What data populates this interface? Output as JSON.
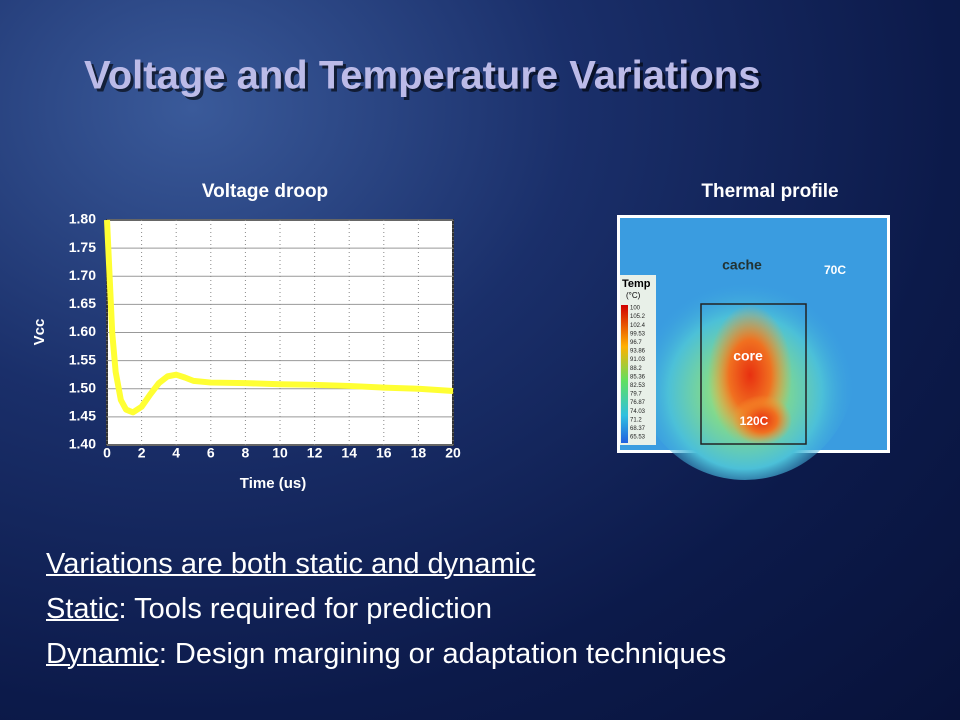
{
  "title": "Voltage and Temperature Variations",
  "chart_data": {
    "type": "line",
    "title": "Voltage droop",
    "x_label": "Time (us)",
    "y_label": "Vcc",
    "x": [
      0,
      0.15,
      0.3,
      0.5,
      0.8,
      1.1,
      1.5,
      2,
      2.5,
      3,
      3.5,
      4,
      4.5,
      5,
      6,
      8,
      10,
      12,
      14,
      16,
      18,
      20
    ],
    "values": [
      1.8,
      1.7,
      1.6,
      1.53,
      1.48,
      1.463,
      1.458,
      1.468,
      1.49,
      1.51,
      1.522,
      1.525,
      1.52,
      1.514,
      1.511,
      1.51,
      1.508,
      1.507,
      1.505,
      1.502,
      1.5,
      1.496
    ],
    "color": "#ffff33",
    "xlim": [
      0,
      20
    ],
    "xticks": [
      0,
      2,
      4,
      6,
      8,
      10,
      12,
      14,
      16,
      18,
      20
    ],
    "ylim": [
      1.4,
      1.8
    ],
    "yticks": [
      {
        "value": 1.4,
        "label": "1.40"
      },
      1.45,
      {
        "value": 1.5,
        "label": "1.50"
      },
      1.55,
      {
        "value": 1.6,
        "label": "1.60"
      },
      1.65,
      {
        "value": 1.7,
        "label": "1.70"
      },
      1.75,
      {
        "value": 1.8,
        "label": "1.80"
      }
    ],
    "grid": true
  },
  "thermal": {
    "title": "Thermal profile",
    "cache": "cache",
    "core": "core",
    "hot": "120C",
    "cool": "70C",
    "scale_title": "Temp",
    "scale_unit": "(°C)",
    "scale_labels": [
      "100",
      "105.2",
      "102.4",
      "99.53",
      "96.7",
      "93.86",
      "91.03",
      "88.2",
      "85.36",
      "82.53",
      "79.7",
      "76.87",
      "74.03",
      "71.2",
      "68.37",
      "65.53"
    ]
  },
  "bullets": [
    {
      "underlined": "Variations are both static and dynamic"
    },
    {
      "underlined": "Static",
      "rest": ": Tools required for prediction"
    },
    {
      "underlined": "Dynamic",
      "rest": ": Design margining or adaptation techniques"
    }
  ]
}
